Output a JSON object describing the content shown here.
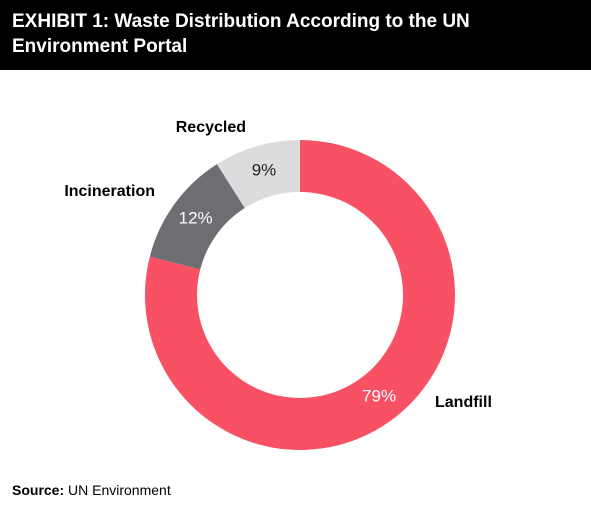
{
  "chart_data": {
    "type": "donut",
    "title": "EXHIBIT 1: Waste Distribution According to the UN Environment Portal",
    "categories": [
      "Landfill",
      "Incineration",
      "Recycled"
    ],
    "values": [
      79,
      12,
      9
    ],
    "value_labels": [
      "79%",
      "12%",
      "9%"
    ],
    "colors": [
      "#f75163",
      "#6d6e72",
      "#dcdcdf"
    ],
    "value_label_colors": [
      "#ffffff",
      "#ffffff",
      "#222222"
    ]
  },
  "source": {
    "label": "Source:",
    "text": "UN Environment"
  }
}
